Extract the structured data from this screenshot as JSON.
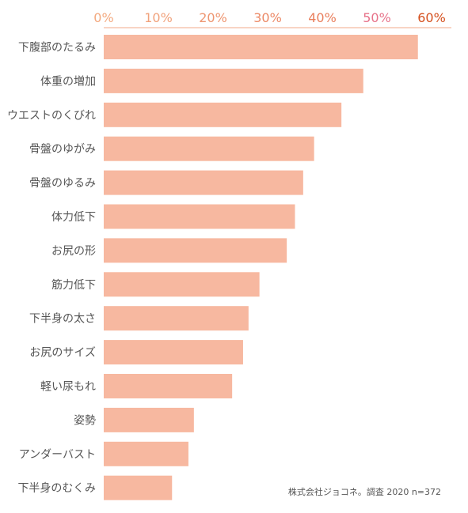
{
  "chart_data": {
    "type": "bar",
    "orientation": "horizontal",
    "axis_position": "top",
    "categories": [
      "下腹部のたるみ",
      "体重の増加",
      "ウエストのくびれ",
      "骨盤のゆがみ",
      "骨盤のゆるみ",
      "体力低下",
      "お尻の形",
      "筋力低下",
      "下半身の太さ",
      "お尻のサイズ",
      "軽い尿もれ",
      "姿勢",
      "アンダーバスト",
      "下半身のむくみ"
    ],
    "values": [
      57.5,
      47.5,
      43.5,
      38.5,
      36.5,
      35,
      33.5,
      28.5,
      26.5,
      25.5,
      23.5,
      16.5,
      15.5,
      12.5
    ],
    "xlim": [
      0,
      62
    ],
    "xticks": [
      {
        "value": 0,
        "label": "0%",
        "color": "#f3a97f"
      },
      {
        "value": 10,
        "label": "10%",
        "color": "#f1a27c"
      },
      {
        "value": 20,
        "label": "20%",
        "color": "#ee9570"
      },
      {
        "value": 30,
        "label": "30%",
        "color": "#ec8966"
      },
      {
        "value": 40,
        "label": "40%",
        "color": "#e97f5d"
      },
      {
        "value": 50,
        "label": "50%",
        "color": "#e7738a"
      },
      {
        "value": 60,
        "label": "60%",
        "color": "#d5501e"
      }
    ],
    "bar_color": "#f7b8a0",
    "axis_line_color": "#f3a98a",
    "grid": false,
    "source": "株式会社ジョコネ。調査 2020 n=372"
  }
}
